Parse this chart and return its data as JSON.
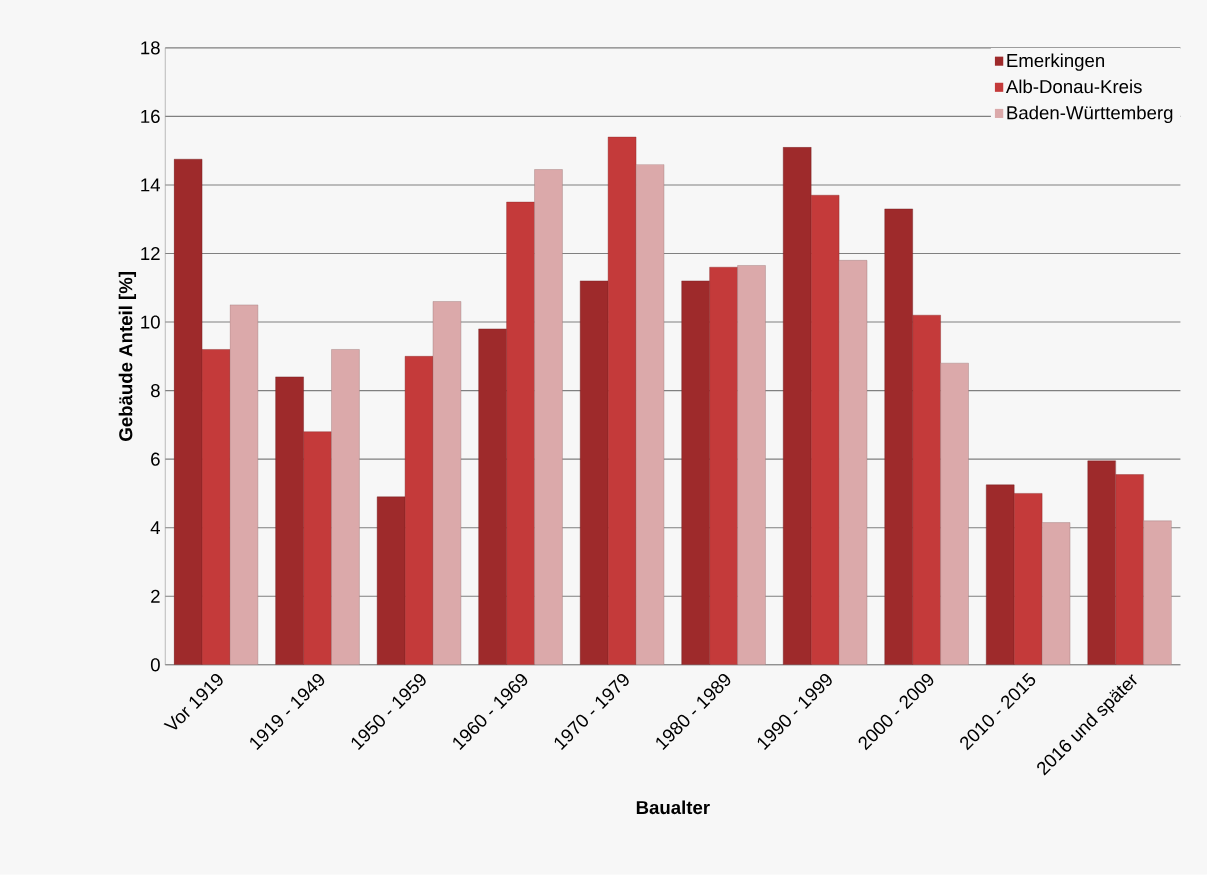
{
  "chart_data": {
    "type": "bar",
    "xlabel": "Baualter",
    "ylabel": "Gebäude Anteil [%]",
    "categories": [
      "Vor 1919",
      "1919 - 1949",
      "1950 - 1959",
      "1960 - 1969",
      "1970 - 1979",
      "1980 - 1989",
      "1990 - 1999",
      "2000 - 2009",
      "2010 - 2015",
      "2016 und später"
    ],
    "series": [
      {
        "name": "Emerkingen",
        "color": "#9e2a2b",
        "values": [
          14.75,
          8.4,
          4.9,
          9.8,
          11.2,
          11.2,
          15.1,
          13.3,
          5.25,
          5.95
        ]
      },
      {
        "name": "Alb-Donau-Kreis",
        "color": "#c43a3a",
        "values": [
          9.2,
          6.8,
          9.0,
          13.5,
          15.4,
          11.6,
          13.7,
          10.2,
          5.0,
          5.55
        ]
      },
      {
        "name": "Baden-Württemberg",
        "color": "#dba9aa",
        "values": [
          10.5,
          9.2,
          10.6,
          14.45,
          14.6,
          11.65,
          11.8,
          8.8,
          4.15,
          4.2
        ]
      }
    ],
    "ylim": [
      0,
      18
    ],
    "yticks": [
      0,
      2,
      4,
      6,
      8,
      10,
      12,
      14,
      16,
      18
    ],
    "grid": "y",
    "legend": "top right"
  }
}
